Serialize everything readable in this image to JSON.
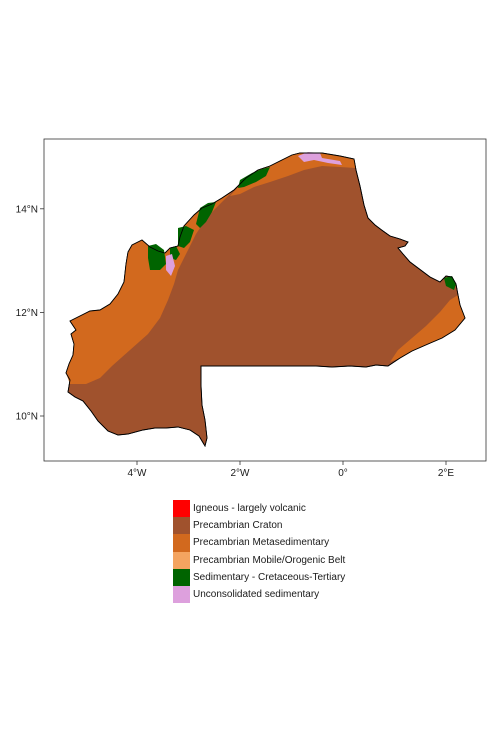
{
  "map": {
    "x_ticks": [
      {
        "lon": -4,
        "label": "4°W"
      },
      {
        "lon": -2,
        "label": "2°W"
      },
      {
        "lon": 0,
        "label": "0°"
      },
      {
        "lon": 2,
        "label": "2°E"
      }
    ],
    "y_ticks": [
      {
        "lat": 14,
        "label": "14°N"
      },
      {
        "lat": 12,
        "label": "12°N"
      },
      {
        "lat": 10,
        "label": "10°N"
      }
    ],
    "extent": {
      "lon": [
        -5.6,
        2.8
      ],
      "lat": [
        9.2,
        15.3
      ]
    },
    "legend": [
      {
        "label": "Igneous - largely volcanic",
        "color": "#ff0000"
      },
      {
        "label": "Precambrian Craton",
        "color": "#a0522d"
      },
      {
        "label": "Precambrian Metasedimentary",
        "color": "#d2691e"
      },
      {
        "label": "Precambrian Mobile/Orogenic Belt",
        "color": "#f4a460"
      },
      {
        "label": "Sedimentary - Cretaceous-Tertiary",
        "color": "#006400"
      },
      {
        "label": "Unconsolidated sedimentary",
        "color": "#dda0dd"
      }
    ]
  }
}
